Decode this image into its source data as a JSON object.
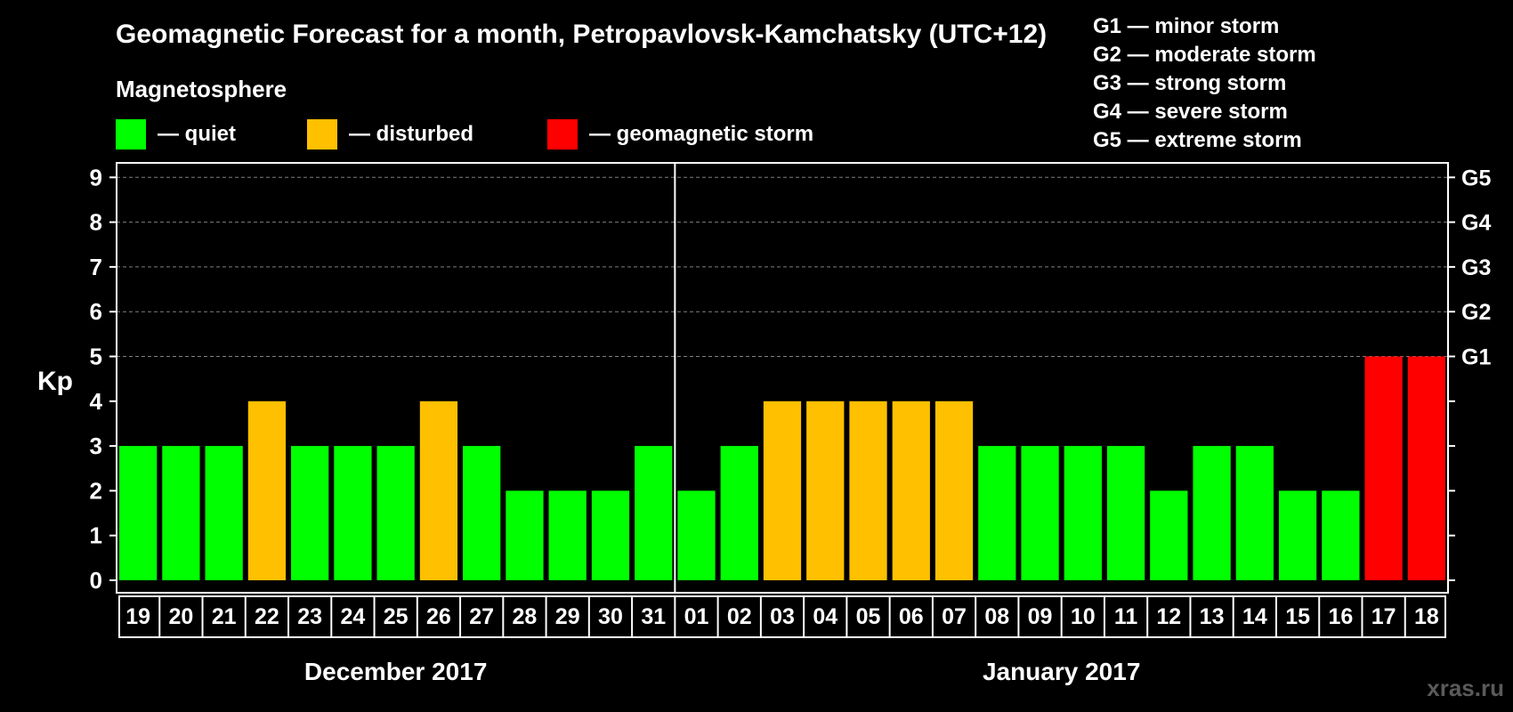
{
  "colors": {
    "quiet": "#00ff00",
    "disturbed": "#ffc000",
    "storm": "#ff0000",
    "background": "#000000",
    "grid": "#808080"
  },
  "chart_data": {
    "type": "bar",
    "title": "Geomagnetic Forecast for a month, Petropavlovsk-Kamchatsky (UTC+12)",
    "subtitle": "Magnetosphere",
    "legend": [
      {
        "label": "— quiet",
        "status": "quiet"
      },
      {
        "label": "— disturbed",
        "status": "disturbed"
      },
      {
        "label": "— geomagnetic storm",
        "status": "storm"
      }
    ],
    "storm_scale": [
      "G1 — minor storm",
      "G2 — moderate storm",
      "G3 — strong storm",
      "G4 — severe storm",
      "G5 — extreme storm"
    ],
    "ylabel": "Kp",
    "ylim": [
      0,
      9
    ],
    "yticks": [
      "0",
      "1",
      "2",
      "3",
      "4",
      "5",
      "6",
      "7",
      "8",
      "9"
    ],
    "right_axis": [
      {
        "kp": 5,
        "label": "G1"
      },
      {
        "kp": 6,
        "label": "G2"
      },
      {
        "kp": 7,
        "label": "G3"
      },
      {
        "kp": 8,
        "label": "G4"
      },
      {
        "kp": 9,
        "label": "G5"
      }
    ],
    "categories": [
      "19",
      "20",
      "21",
      "22",
      "23",
      "24",
      "25",
      "26",
      "27",
      "28",
      "29",
      "30",
      "31",
      "01",
      "02",
      "03",
      "04",
      "05",
      "06",
      "07",
      "08",
      "09",
      "10",
      "11",
      "12",
      "13",
      "14",
      "15",
      "16",
      "17",
      "18"
    ],
    "values": [
      3,
      3,
      3,
      4,
      3,
      3,
      3,
      4,
      3,
      2,
      2,
      2,
      3,
      2,
      3,
      4,
      4,
      4,
      4,
      4,
      3,
      3,
      3,
      3,
      2,
      3,
      3,
      2,
      2,
      5,
      5
    ],
    "status": [
      "quiet",
      "quiet",
      "quiet",
      "disturbed",
      "quiet",
      "quiet",
      "quiet",
      "disturbed",
      "quiet",
      "quiet",
      "quiet",
      "quiet",
      "quiet",
      "quiet",
      "quiet",
      "disturbed",
      "disturbed",
      "disturbed",
      "disturbed",
      "disturbed",
      "quiet",
      "quiet",
      "quiet",
      "quiet",
      "quiet",
      "quiet",
      "quiet",
      "quiet",
      "quiet",
      "storm",
      "storm"
    ],
    "months": [
      {
        "label": "December 2017",
        "start": 0,
        "count": 13
      },
      {
        "label": "January 2017",
        "start": 13,
        "count": 18
      }
    ],
    "grid": true
  },
  "watermark": "xras.ru"
}
